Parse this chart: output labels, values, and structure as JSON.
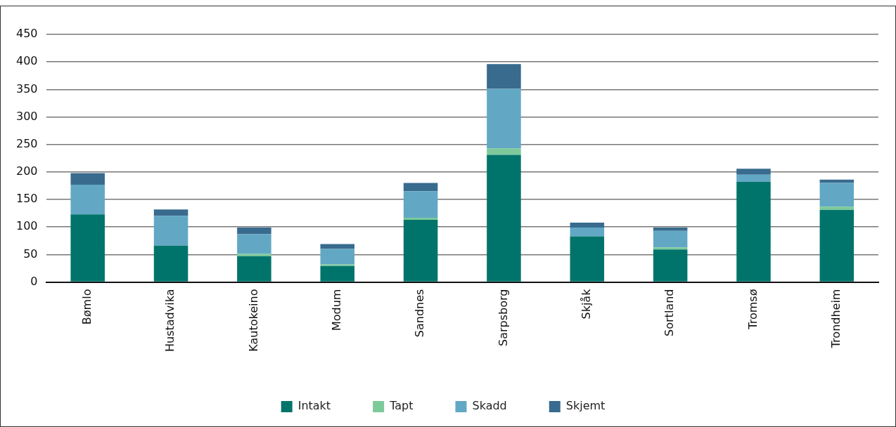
{
  "chart_data": {
    "type": "bar",
    "stacked": true,
    "categories": [
      "Bømlo",
      "Hustadvika",
      "Kautokeino",
      "Modum",
      "Sandnes",
      "Sarpsborg",
      "Skjåk",
      "Sortland",
      "Tromsø",
      "Trondheim"
    ],
    "series": [
      {
        "name": "Intakt",
        "color": "#00746b",
        "values": [
          123,
          66,
          47,
          29,
          113,
          231,
          83,
          59,
          182,
          131
        ]
      },
      {
        "name": "Tapt",
        "color": "#7dc99a",
        "values": [
          0,
          0,
          4,
          3,
          4,
          12,
          0,
          4,
          0,
          6
        ]
      },
      {
        "name": "Skadd",
        "color": "#62a8c4",
        "values": [
          54,
          54,
          36,
          28,
          48,
          108,
          16,
          30,
          13,
          43
        ]
      },
      {
        "name": "Skjemt",
        "color": "#386b8e",
        "values": [
          21,
          12,
          12,
          9,
          15,
          45,
          9,
          6,
          11,
          6
        ]
      }
    ],
    "ylim": [
      0,
      450
    ],
    "yticks": [
      0,
      50,
      100,
      150,
      200,
      250,
      300,
      350,
      400,
      450
    ],
    "grid": "y",
    "legend": "bottom"
  }
}
